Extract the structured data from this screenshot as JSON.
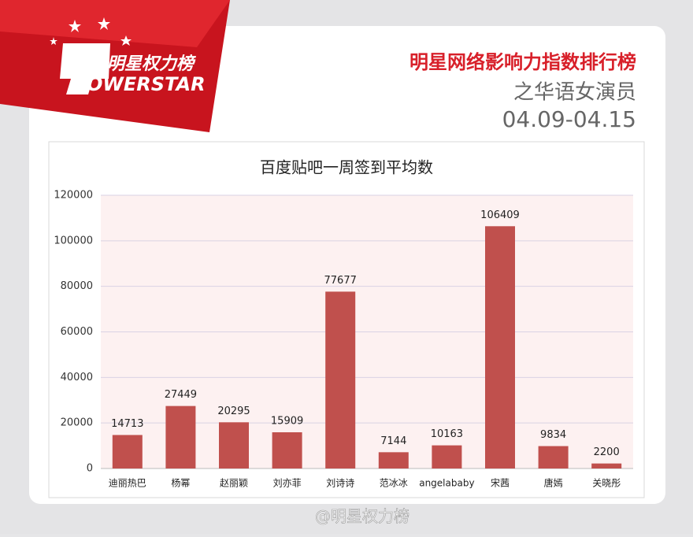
{
  "header": {
    "logo_cn": "明星权力榜",
    "logo_en": "OWERSTAR",
    "title": "明星网络影响力指数排行榜",
    "subtitle": "之华语女演员",
    "date": "04.09-04.15"
  },
  "chart_data": {
    "type": "bar",
    "title": "百度贴吧一周签到平均数",
    "categories": [
      "迪丽热巴",
      "杨幂",
      "赵丽颖",
      "刘亦菲",
      "刘诗诗",
      "范冰冰",
      "angelababy",
      "宋茜",
      "唐嫣",
      "关晓彤"
    ],
    "values": [
      14713,
      27449,
      20295,
      15909,
      77677,
      7144,
      10163,
      106409,
      9834,
      2200
    ],
    "color": "#c0504d",
    "ylim": [
      0,
      120000
    ],
    "yticks": [
      0,
      20000,
      40000,
      60000,
      80000,
      100000,
      120000
    ],
    "grid": true
  },
  "footer": {
    "watermark": "@明星权力榜"
  }
}
